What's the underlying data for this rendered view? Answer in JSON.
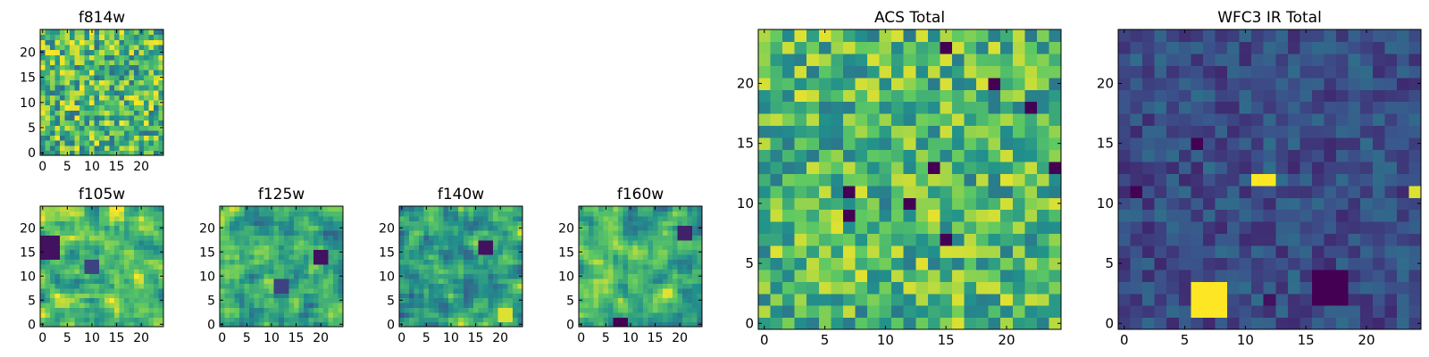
{
  "colormap": "viridis",
  "colormap_stops": [
    "#440154",
    "#3b528b",
    "#21918c",
    "#5ec962",
    "#fde725"
  ],
  "chart_data": [
    {
      "type": "heatmap",
      "title": "f814w",
      "grid_size": 25,
      "xlim": [
        0,
        24
      ],
      "ylim": [
        0,
        24
      ],
      "x_ticks": [
        "0",
        "5",
        "10",
        "15",
        "20"
      ],
      "y_ticks": [
        "0",
        "5",
        "10",
        "15",
        "20"
      ],
      "xlabel": "",
      "ylabel": "",
      "seed": 11,
      "smooth": 0,
      "base": 0.68,
      "noise": 0.32,
      "features": []
    },
    {
      "type": "heatmap",
      "title": "f105w",
      "grid_size": 25,
      "xlim": [
        0,
        24
      ],
      "ylim": [
        0,
        24
      ],
      "x_ticks": [
        "0",
        "5",
        "10",
        "15",
        "20"
      ],
      "y_ticks": [
        "0",
        "5",
        "10",
        "15",
        "20"
      ],
      "xlabel": "",
      "ylabel": "",
      "seed": 23,
      "smooth": 1,
      "base": 0.72,
      "noise": 0.32,
      "features": [
        {
          "x": 1,
          "y": 16,
          "r": 2,
          "v": 0.05
        },
        {
          "x": 10,
          "y": 12,
          "r": 1,
          "v": 0.2
        }
      ]
    },
    {
      "type": "heatmap",
      "title": "f125w",
      "grid_size": 25,
      "xlim": [
        0,
        24
      ],
      "ylim": [
        0,
        24
      ],
      "x_ticks": [
        "0",
        "5",
        "10",
        "15",
        "20"
      ],
      "y_ticks": [
        "0",
        "5",
        "10",
        "15",
        "20"
      ],
      "xlabel": "",
      "ylabel": "",
      "seed": 37,
      "smooth": 1,
      "base": 0.62,
      "noise": 0.32,
      "features": [
        {
          "x": 20,
          "y": 14,
          "r": 1,
          "v": 0.05
        },
        {
          "x": 12,
          "y": 8,
          "r": 1,
          "v": 0.2
        }
      ]
    },
    {
      "type": "heatmap",
      "title": "f140w",
      "grid_size": 25,
      "xlim": [
        0,
        24
      ],
      "ylim": [
        0,
        24
      ],
      "x_ticks": [
        "0",
        "5",
        "10",
        "15",
        "20"
      ],
      "y_ticks": [
        "0",
        "5",
        "10",
        "15",
        "20"
      ],
      "xlabel": "",
      "ylabel": "",
      "seed": 41,
      "smooth": 1,
      "base": 0.6,
      "noise": 0.34,
      "features": [
        {
          "x": 21,
          "y": 2,
          "r": 1,
          "v": 0.95
        },
        {
          "x": 17,
          "y": 16,
          "r": 1,
          "v": 0.05
        }
      ]
    },
    {
      "type": "heatmap",
      "title": "f160w",
      "grid_size": 25,
      "xlim": [
        0,
        24
      ],
      "ylim": [
        0,
        24
      ],
      "x_ticks": [
        "0",
        "5",
        "10",
        "15",
        "20"
      ],
      "y_ticks": [
        "0",
        "5",
        "10",
        "15",
        "20"
      ],
      "xlabel": "",
      "ylabel": "",
      "seed": 53,
      "smooth": 1,
      "base": 0.62,
      "noise": 0.34,
      "features": [
        {
          "x": 8,
          "y": 0,
          "r": 1,
          "v": 0.0
        },
        {
          "x": 21,
          "y": 19,
          "r": 1,
          "v": 0.1
        }
      ]
    },
    {
      "type": "heatmap",
      "title": "ACS Total",
      "grid_size": 25,
      "xlim": [
        0,
        24
      ],
      "ylim": [
        0,
        24
      ],
      "x_ticks": [
        "0",
        "5",
        "10",
        "15",
        "20"
      ],
      "y_ticks": [
        "0",
        "5",
        "10",
        "15",
        "20"
      ],
      "xlabel": "",
      "ylabel": "",
      "seed": 67,
      "smooth": 0,
      "base": 0.68,
      "noise": 0.28,
      "features": [
        {
          "x": 15,
          "y": 23,
          "r": 0,
          "v": 0.0
        },
        {
          "x": 19,
          "y": 20,
          "r": 0,
          "v": 0.0
        },
        {
          "x": 22,
          "y": 18,
          "r": 0,
          "v": 0.0
        },
        {
          "x": 14,
          "y": 13,
          "r": 0,
          "v": 0.0
        },
        {
          "x": 7,
          "y": 11,
          "r": 0,
          "v": 0.0
        },
        {
          "x": 12,
          "y": 10,
          "r": 0,
          "v": 0.0
        },
        {
          "x": 7,
          "y": 9,
          "r": 0,
          "v": 0.0
        },
        {
          "x": 15,
          "y": 7,
          "r": 0,
          "v": 0.0
        },
        {
          "x": 24,
          "y": 13,
          "r": 0,
          "v": 0.0
        }
      ]
    },
    {
      "type": "heatmap",
      "title": "WFC3 IR Total",
      "grid_size": 25,
      "xlim": [
        0,
        24
      ],
      "ylim": [
        0,
        24
      ],
      "x_ticks": [
        "0",
        "5",
        "10",
        "15",
        "20"
      ],
      "y_ticks": [
        "0",
        "5",
        "10",
        "15",
        "20"
      ],
      "xlabel": "",
      "ylabel": "",
      "seed": 79,
      "smooth": 0,
      "base": 0.24,
      "noise": 0.12,
      "features": [
        {
          "x": 7,
          "y": 2,
          "r": 1,
          "v": 1.0
        },
        {
          "x": 12,
          "y": 12,
          "r": 0,
          "v": 1.0
        },
        {
          "x": 11,
          "y": 12,
          "r": 0,
          "v": 1.0
        },
        {
          "x": 24,
          "y": 11,
          "r": 0,
          "v": 0.95
        },
        {
          "x": 6,
          "y": 15,
          "r": 0,
          "v": 0.0
        },
        {
          "x": 17,
          "y": 3,
          "r": 1,
          "v": 0.0
        },
        {
          "x": 1,
          "y": 11,
          "r": 0,
          "v": 0.0
        },
        {
          "x": 12,
          "y": 2,
          "r": 0,
          "v": 0.05
        }
      ]
    }
  ]
}
